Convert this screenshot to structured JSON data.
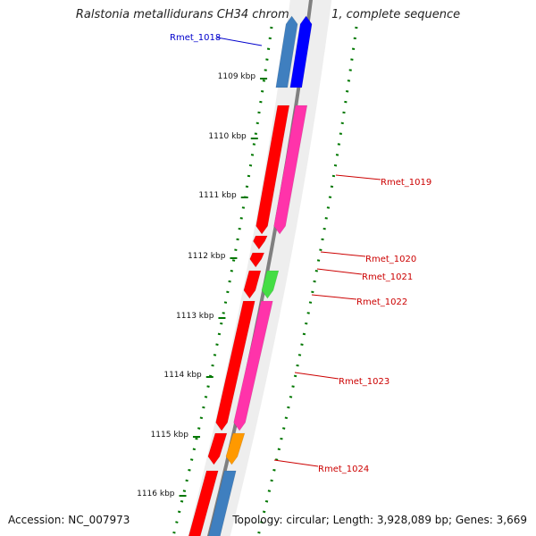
{
  "title": "Ralstonia metallidurans CH34 chromosome 1, complete sequence",
  "footer": {
    "accession": "Accession: NC_007973",
    "summary": "Topology: circular; Length: 3,928,089 bp; Genes: 3,669"
  },
  "ticks": [
    {
      "label": "1109 kbp"
    },
    {
      "label": "1110 kbp"
    },
    {
      "label": "1111 kbp"
    },
    {
      "label": "1112 kbp"
    },
    {
      "label": "1113 kbp"
    },
    {
      "label": "1114 kbp"
    },
    {
      "label": "1115 kbp"
    },
    {
      "label": "1116 kbp"
    }
  ],
  "genes": [
    {
      "label": "Rmet_1018",
      "strand": "forward",
      "color": "#0000ff",
      "cds_color": "#3f7fbf"
    },
    {
      "label": "Rmet_1019",
      "strand": "reverse",
      "color": "#ff0000",
      "cds_color": "#ff33aa"
    },
    {
      "label": "Rmet_1020",
      "strand": "reverse",
      "color": "#ff0000",
      "cds_color": ""
    },
    {
      "label": "Rmet_1021",
      "strand": "reverse",
      "color": "#ff0000",
      "cds_color": ""
    },
    {
      "label": "Rmet_1022",
      "strand": "reverse",
      "color": "#ff0000",
      "cds_color": "#44dd44"
    },
    {
      "label": "Rmet_1023",
      "strand": "reverse",
      "color": "#ff0000",
      "cds_color": "#ff33aa"
    },
    {
      "label": "Rmet_1024",
      "strand": "reverse",
      "color": "#ff0000",
      "cds_color": "#ff9900"
    },
    {
      "label": "",
      "strand": "reverse",
      "color": "#ff0000",
      "cds_color": "#3f7fbf"
    }
  ],
  "colors": {
    "backbone": "#808080",
    "tick_marks": "#007700",
    "label_forward": "#0000cc",
    "label_reverse": "#cc0000"
  }
}
